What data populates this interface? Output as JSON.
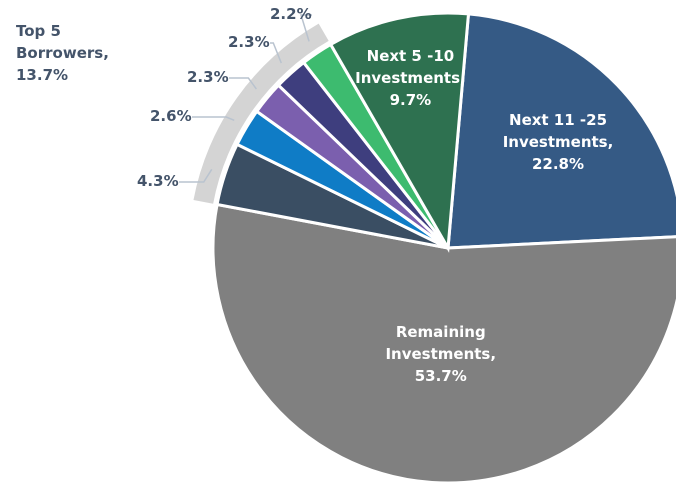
{
  "chart_data": {
    "type": "pie",
    "categories": [
      "Next 11 -25 Investments,",
      "Remaining Investments,",
      null,
      null,
      null,
      null,
      null,
      "Next 5 -10 Investments,"
    ],
    "values": [
      22.8,
      53.7,
      4.3,
      2.6,
      2.3,
      2.3,
      2.2,
      9.7
    ],
    "value_labels": [
      "22.8%",
      "53.7%",
      "4.3%",
      "2.6%",
      "2.3%",
      "2.3%",
      "2.2%",
      "9.7%"
    ],
    "colors": [
      "#355a85",
      "#808080",
      "#3a4e63",
      "#0f7cc6",
      "#7b5fae",
      "#3e3e7e",
      "#3dbb6f",
      "#2e7150"
    ],
    "group": {
      "label": "Top 5 Borrowers,",
      "value": 13.7,
      "value_label": "13.7%"
    }
  }
}
